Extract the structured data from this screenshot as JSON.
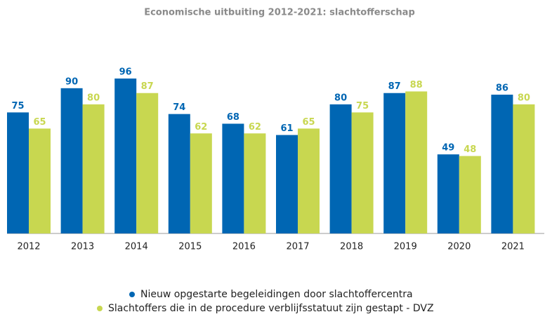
{
  "chart_data": {
    "type": "bar",
    "title": "Economische uitbuiting 2012-2021: slachtofferschap",
    "categories": [
      "2012",
      "2013",
      "2014",
      "2015",
      "2016",
      "2017",
      "2018",
      "2019",
      "2020",
      "2021"
    ],
    "series": [
      {
        "name": "Nieuw opgestarte begeleidingen door slachtoffercentra",
        "color": "#0066b3",
        "values": [
          75,
          90,
          96,
          74,
          68,
          61,
          80,
          87,
          49,
          86
        ]
      },
      {
        "name": "Slachtoffers die in de procedure verblijfsstatuut zijn gestapt - DVZ",
        "color": "#c8d750",
        "values": [
          65,
          80,
          87,
          62,
          62,
          65,
          75,
          88,
          48,
          80
        ]
      }
    ],
    "legend": "bottom"
  }
}
